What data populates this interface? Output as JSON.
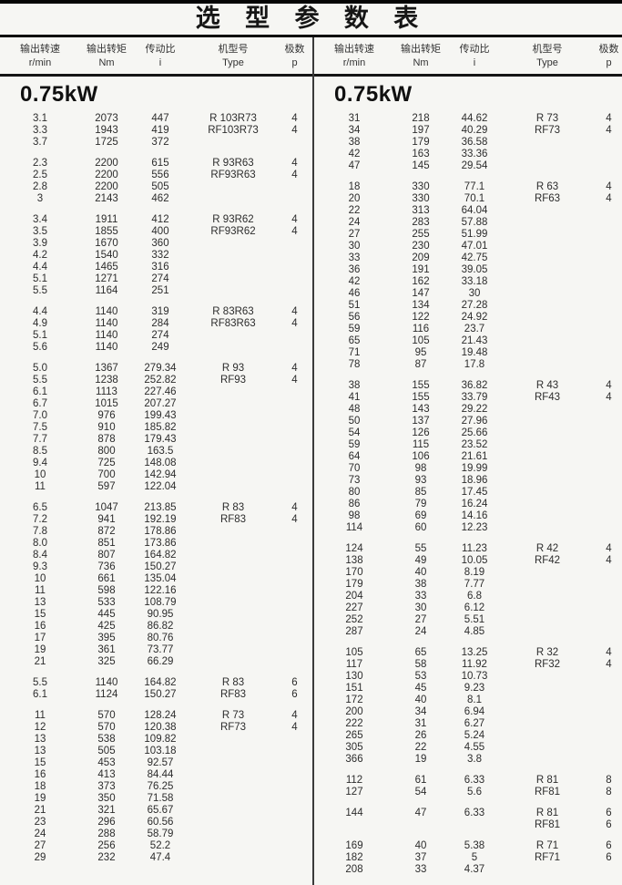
{
  "title": "选 型 参 数 表",
  "columns": [
    {
      "cn": "输出转速",
      "unit": "r/min"
    },
    {
      "cn": "输出转矩",
      "unit": "Nm"
    },
    {
      "cn": "传动比",
      "unit": "i"
    },
    {
      "cn": "机型号",
      "unit": "Type"
    },
    {
      "cn": "极数",
      "unit": "p"
    }
  ],
  "left": {
    "power": "0.75kW",
    "groups": [
      [
        [
          "3.1",
          "2073",
          "447",
          "R 103R73",
          "4"
        ],
        [
          "3.3",
          "1943",
          "419",
          "RF103R73",
          "4"
        ],
        [
          "3.7",
          "1725",
          "372",
          "",
          ""
        ]
      ],
      [
        [
          "2.3",
          "2200",
          "615",
          "R 93R63",
          "4"
        ],
        [
          "2.5",
          "2200",
          "556",
          "RF93R63",
          "4"
        ],
        [
          "2.8",
          "2200",
          "505",
          "",
          ""
        ],
        [
          "3",
          "2143",
          "462",
          "",
          ""
        ]
      ],
      [
        [
          "3.4",
          "1911",
          "412",
          "R 93R62",
          "4"
        ],
        [
          "3.5",
          "1855",
          "400",
          "RF93R62",
          "4"
        ],
        [
          "3.9",
          "1670",
          "360",
          "",
          ""
        ],
        [
          "4.2",
          "1540",
          "332",
          "",
          ""
        ],
        [
          "4.4",
          "1465",
          "316",
          "",
          ""
        ],
        [
          "5.1",
          "1271",
          "274",
          "",
          ""
        ],
        [
          "5.5",
          "1164",
          "251",
          "",
          ""
        ]
      ],
      [
        [
          "4.4",
          "1140",
          "319",
          "R 83R63",
          "4"
        ],
        [
          "4.9",
          "1140",
          "284",
          "RF83R63",
          "4"
        ],
        [
          "5.1",
          "1140",
          "274",
          "",
          ""
        ],
        [
          "5.6",
          "1140",
          "249",
          "",
          ""
        ]
      ],
      [
        [
          "5.0",
          "1367",
          "279.34",
          "R 93",
          "4"
        ],
        [
          "5.5",
          "1238",
          "252.82",
          "RF93",
          "4"
        ],
        [
          "6.1",
          "1113",
          "227.46",
          "",
          ""
        ],
        [
          "6.7",
          "1015",
          "207.27",
          "",
          ""
        ],
        [
          "7.0",
          "976",
          "199.43",
          "",
          ""
        ],
        [
          "7.5",
          "910",
          "185.82",
          "",
          ""
        ],
        [
          "7.7",
          "878",
          "179.43",
          "",
          ""
        ],
        [
          "8.5",
          "800",
          "163.5",
          "",
          ""
        ],
        [
          "9.4",
          "725",
          "148.08",
          "",
          ""
        ],
        [
          "10",
          "700",
          "142.94",
          "",
          ""
        ],
        [
          "11",
          "597",
          "122.04",
          "",
          ""
        ]
      ],
      [
        [
          "6.5",
          "1047",
          "213.85",
          "R 83",
          "4"
        ],
        [
          "7.2",
          "941",
          "192.19",
          "RF83",
          "4"
        ],
        [
          "7.8",
          "872",
          "178.86",
          "",
          ""
        ],
        [
          "8.0",
          "851",
          "173.86",
          "",
          ""
        ],
        [
          "8.4",
          "807",
          "164.82",
          "",
          ""
        ],
        [
          "9.3",
          "736",
          "150.27",
          "",
          ""
        ],
        [
          "10",
          "661",
          "135.04",
          "",
          ""
        ],
        [
          "11",
          "598",
          "122.16",
          "",
          ""
        ],
        [
          "13",
          "533",
          "108.79",
          "",
          ""
        ],
        [
          "15",
          "445",
          "90.95",
          "",
          ""
        ],
        [
          "16",
          "425",
          "86.82",
          "",
          ""
        ],
        [
          "17",
          "395",
          "80.76",
          "",
          ""
        ],
        [
          "19",
          "361",
          "73.77",
          "",
          ""
        ],
        [
          "21",
          "325",
          "66.29",
          "",
          ""
        ]
      ],
      [
        [
          "5.5",
          "1140",
          "164.82",
          "R 83",
          "6"
        ],
        [
          "6.1",
          "1124",
          "150.27",
          "RF83",
          "6"
        ]
      ],
      [
        [
          "11",
          "570",
          "128.24",
          "R 73",
          "4"
        ],
        [
          "12",
          "570",
          "120.38",
          "RF73",
          "4"
        ],
        [
          "13",
          "538",
          "109.82",
          "",
          ""
        ],
        [
          "13",
          "505",
          "103.18",
          "",
          ""
        ],
        [
          "15",
          "453",
          "92.57",
          "",
          ""
        ],
        [
          "16",
          "413",
          "84.44",
          "",
          ""
        ],
        [
          "18",
          "373",
          "76.25",
          "",
          ""
        ],
        [
          "19",
          "350",
          "71.58",
          "",
          ""
        ],
        [
          "21",
          "321",
          "65.67",
          "",
          ""
        ],
        [
          "23",
          "296",
          "60.56",
          "",
          ""
        ],
        [
          "24",
          "288",
          "58.79",
          "",
          ""
        ],
        [
          "27",
          "256",
          "52.2",
          "",
          ""
        ],
        [
          "29",
          "232",
          "47.4",
          "",
          ""
        ]
      ]
    ]
  },
  "right": {
    "power": "0.75kW",
    "groups": [
      [
        [
          "31",
          "218",
          "44.62",
          "R 73",
          "4"
        ],
        [
          "34",
          "197",
          "40.29",
          "RF73",
          "4"
        ],
        [
          "38",
          "179",
          "36.58",
          "",
          ""
        ],
        [
          "42",
          "163",
          "33.36",
          "",
          ""
        ],
        [
          "47",
          "145",
          "29.54",
          "",
          ""
        ]
      ],
      [
        [
          "18",
          "330",
          "77.1",
          "R 63",
          "4"
        ],
        [
          "20",
          "330",
          "70.1",
          "RF63",
          "4"
        ],
        [
          "22",
          "313",
          "64.04",
          "",
          ""
        ],
        [
          "24",
          "283",
          "57.88",
          "",
          ""
        ],
        [
          "27",
          "255",
          "51.99",
          "",
          ""
        ],
        [
          "30",
          "230",
          "47.01",
          "",
          ""
        ],
        [
          "33",
          "209",
          "42.75",
          "",
          ""
        ],
        [
          "36",
          "191",
          "39.05",
          "",
          ""
        ],
        [
          "42",
          "162",
          "33.18",
          "",
          ""
        ],
        [
          "46",
          "147",
          "30",
          "",
          ""
        ],
        [
          "51",
          "134",
          "27.28",
          "",
          ""
        ],
        [
          "56",
          "122",
          "24.92",
          "",
          ""
        ],
        [
          "59",
          "116",
          "23.7",
          "",
          ""
        ],
        [
          "65",
          "105",
          "21.43",
          "",
          ""
        ],
        [
          "71",
          "95",
          "19.48",
          "",
          ""
        ],
        [
          "78",
          "87",
          "17.8",
          "",
          ""
        ]
      ],
      [
        [
          "38",
          "155",
          "36.82",
          "R 43",
          "4"
        ],
        [
          "41",
          "155",
          "33.79",
          "RF43",
          "4"
        ],
        [
          "48",
          "143",
          "29.22",
          "",
          ""
        ],
        [
          "50",
          "137",
          "27.96",
          "",
          ""
        ],
        [
          "54",
          "126",
          "25.66",
          "",
          ""
        ],
        [
          "59",
          "115",
          "23.52",
          "",
          ""
        ],
        [
          "64",
          "106",
          "21.61",
          "",
          ""
        ],
        [
          "70",
          "98",
          "19.99",
          "",
          ""
        ],
        [
          "73",
          "93",
          "18.96",
          "",
          ""
        ],
        [
          "80",
          "85",
          "17.45",
          "",
          ""
        ],
        [
          "86",
          "79",
          "16.24",
          "",
          ""
        ],
        [
          "98",
          "69",
          "14.16",
          "",
          ""
        ],
        [
          "114",
          "60",
          "12.23",
          "",
          ""
        ]
      ],
      [
        [
          "124",
          "55",
          "11.23",
          "R 42",
          "4"
        ],
        [
          "138",
          "49",
          "10.05",
          "RF42",
          "4"
        ],
        [
          "170",
          "40",
          "8.19",
          "",
          ""
        ],
        [
          "179",
          "38",
          "7.77",
          "",
          ""
        ],
        [
          "204",
          "33",
          "6.8",
          "",
          ""
        ],
        [
          "227",
          "30",
          "6.12",
          "",
          ""
        ],
        [
          "252",
          "27",
          "5.51",
          "",
          ""
        ],
        [
          "287",
          "24",
          "4.85",
          "",
          ""
        ]
      ],
      [
        [
          "105",
          "65",
          "13.25",
          "R 32",
          "4"
        ],
        [
          "117",
          "58",
          "11.92",
          "RF32",
          "4"
        ],
        [
          "130",
          "53",
          "10.73",
          "",
          ""
        ],
        [
          "151",
          "45",
          "9.23",
          "",
          ""
        ],
        [
          "172",
          "40",
          "8.1",
          "",
          ""
        ],
        [
          "200",
          "34",
          "6.94",
          "",
          ""
        ],
        [
          "222",
          "31",
          "6.27",
          "",
          ""
        ],
        [
          "265",
          "26",
          "5.24",
          "",
          ""
        ],
        [
          "305",
          "22",
          "4.55",
          "",
          ""
        ],
        [
          "366",
          "19",
          "3.8",
          "",
          ""
        ]
      ],
      [
        [
          "112",
          "61",
          "6.33",
          "R 81",
          "8"
        ],
        [
          "127",
          "54",
          "5.6",
          "RF81",
          "8"
        ]
      ],
      [
        [
          "144",
          "47",
          "6.33",
          "R 81",
          "6"
        ],
        [
          "",
          "",
          "",
          "RF81",
          "6"
        ]
      ],
      [
        [
          "169",
          "40",
          "5.38",
          "R 71",
          "6"
        ],
        [
          "182",
          "37",
          "5",
          "RF71",
          "6"
        ],
        [
          "208",
          "33",
          "4.37",
          "",
          ""
        ]
      ]
    ]
  },
  "colors": {
    "page_background": "#f6f6f3",
    "rule_black": "#0a0a0a",
    "text": "#2c2c2c"
  }
}
